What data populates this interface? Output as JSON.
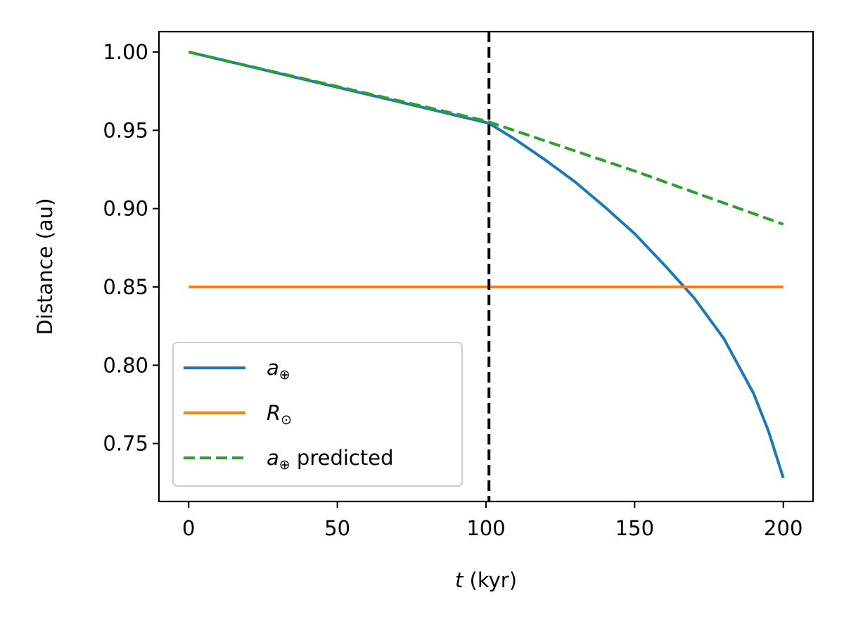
{
  "chart_data": {
    "type": "line",
    "title": "",
    "xlabel": {
      "var": "t",
      "unit": " (kyr)"
    },
    "ylabel": "Distance (au)",
    "xlim": [
      -10,
      210
    ],
    "ylim": [
      0.713,
      1.013
    ],
    "xticks": [
      0,
      50,
      100,
      150,
      200
    ],
    "xtick_labels": [
      "0",
      "50",
      "100",
      "150",
      "200"
    ],
    "yticks": [
      0.75,
      0.8,
      0.85,
      0.9,
      0.95,
      1.0
    ],
    "ytick_labels": [
      "0.75",
      "0.80",
      "0.85",
      "0.90",
      "0.95",
      "1.00"
    ],
    "grid": false,
    "legend_position": "lower-left",
    "vline": {
      "x": 101,
      "color": "#000000",
      "style": "dashed"
    },
    "series": [
      {
        "key": "a-earth",
        "name": "a",
        "name_sub": "⊕",
        "name_suffix": "",
        "color": "#1f77b4",
        "style": "solid",
        "x": [
          0,
          10,
          20,
          30,
          40,
          50,
          60,
          70,
          80,
          90,
          100,
          101,
          110,
          120,
          130,
          140,
          150,
          160,
          170,
          180,
          190,
          195,
          200
        ],
        "y": [
          1.0,
          0.9955,
          0.991,
          0.9865,
          0.982,
          0.9775,
          0.973,
          0.9685,
          0.964,
          0.9595,
          0.955,
          0.9545,
          0.944,
          0.931,
          0.917,
          0.901,
          0.884,
          0.864,
          0.843,
          0.817,
          0.782,
          0.758,
          0.728
        ]
      },
      {
        "key": "r-sun",
        "name": "R",
        "name_sub": "⊙",
        "name_suffix": "",
        "color": "#ff7f0e",
        "style": "solid",
        "x": [
          0,
          200
        ],
        "y": [
          0.85,
          0.85
        ]
      },
      {
        "key": "a-earth-predicted",
        "name": "a",
        "name_sub": "⊕",
        "name_suffix": " predicted",
        "color": "#2ca02c",
        "style": "dashed",
        "x": [
          0,
          25,
          50,
          75,
          100,
          125,
          150,
          175,
          200
        ],
        "y": [
          1.0,
          0.989,
          0.978,
          0.967,
          0.956,
          0.94,
          0.924,
          0.907,
          0.89
        ]
      }
    ]
  }
}
